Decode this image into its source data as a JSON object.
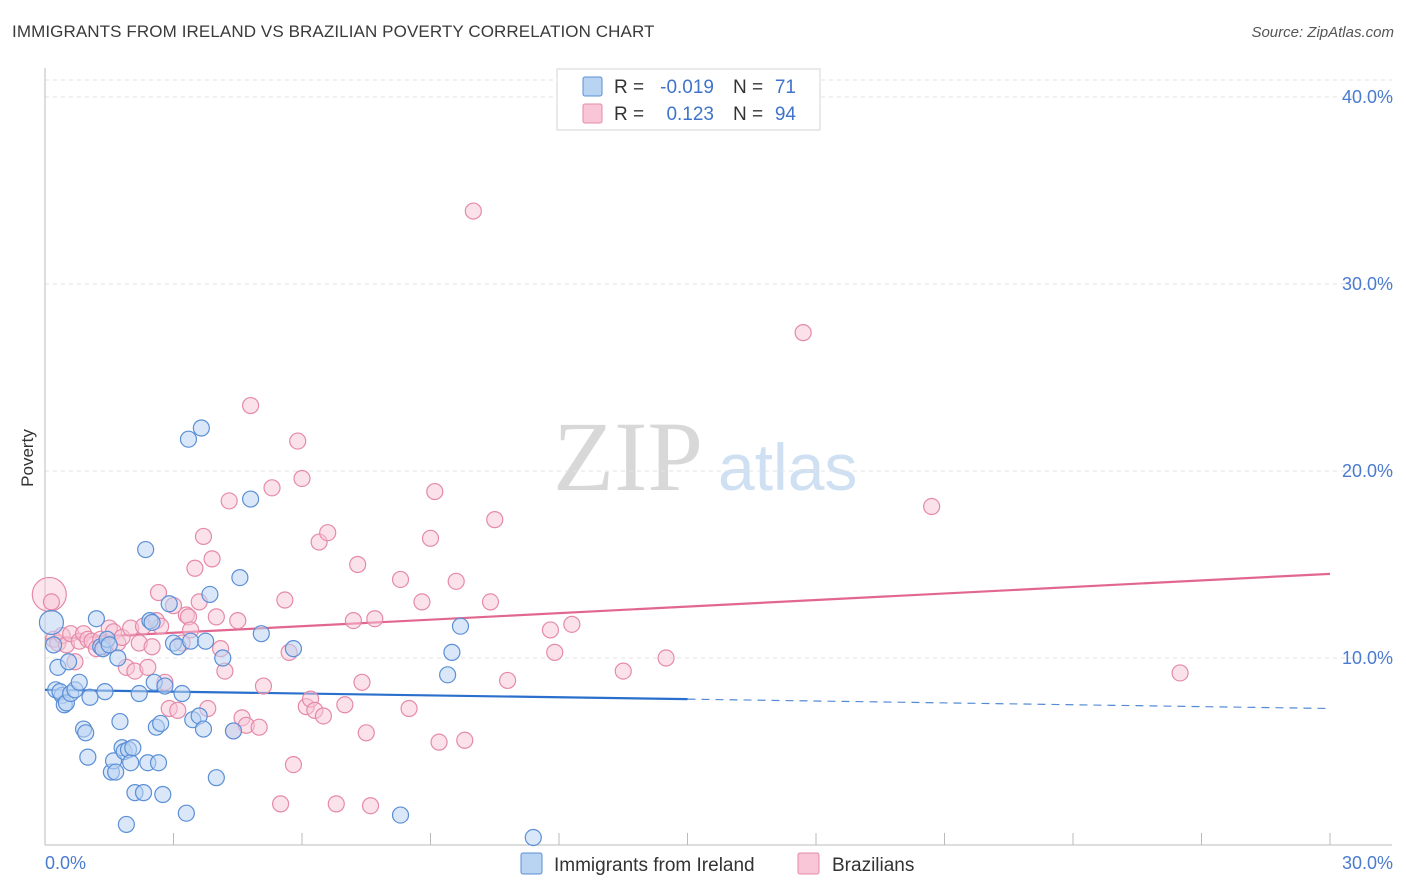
{
  "title": "IMMIGRANTS FROM IRELAND VS BRAZILIAN POVERTY CORRELATION CHART",
  "source": "Source: ZipAtlas.com",
  "watermark": {
    "zip": "ZIP",
    "atlas": "atlas"
  },
  "legend_top": {
    "rows": [
      {
        "r_label": "R =",
        "r_value": "-0.019",
        "n_label": "N =",
        "n_value": "71"
      },
      {
        "r_label": "R =",
        "r_value": "0.123",
        "n_label": "N =",
        "n_value": "94"
      }
    ]
  },
  "colors": {
    "blue_fill": "#b9d3f3",
    "blue_stroke": "#5b8fd6",
    "blue_line": "#2a6fcb",
    "pink_fill": "#f8c6d6",
    "pink_stroke": "#e58aa8",
    "pink_line": "#e2678f",
    "tick_text": "#4a7bd0",
    "grid": "#e3e3e3"
  },
  "chart_data": {
    "type": "scatter",
    "title": "IMMIGRANTS FROM IRELAND VS BRAZILIAN POVERTY CORRELATION CHART",
    "xlabel": "",
    "ylabel": "Poverty",
    "xlim": [
      0,
      30
    ],
    "ylim": [
      0,
      40
    ],
    "x_tick_labels": [
      {
        "value": 0,
        "label": "0.0%"
      },
      {
        "value": 30,
        "label": "30.0%"
      }
    ],
    "y_tick_labels": [
      {
        "value": 10,
        "label": "10.0%"
      },
      {
        "value": 20,
        "label": "20.0%"
      },
      {
        "value": 30,
        "label": "30.0%"
      },
      {
        "value": 40,
        "label": "40.0%"
      }
    ],
    "grid": true,
    "legend_position": "bottom-center",
    "series": [
      {
        "name": "Immigrants from Ireland",
        "color": "#5b8fd6",
        "r": -0.019,
        "n": 71,
        "trend": {
          "x0": 0,
          "y0": 8.3,
          "x1": 15,
          "y1": 7.8,
          "dashed_to_x": 30,
          "dashed_to_y": 7.3
        },
        "points": [
          [
            0.15,
            11.9
          ],
          [
            0.2,
            10.7
          ],
          [
            0.3,
            9.5
          ],
          [
            0.25,
            8.3
          ],
          [
            0.4,
            8.0
          ],
          [
            0.35,
            8.2
          ],
          [
            0.45,
            7.5
          ],
          [
            0.5,
            7.6
          ],
          [
            0.6,
            8.1
          ],
          [
            0.7,
            8.3
          ],
          [
            0.55,
            9.8
          ],
          [
            0.8,
            8.7
          ],
          [
            0.9,
            6.2
          ],
          [
            0.95,
            6.0
          ],
          [
            1.0,
            4.7
          ],
          [
            1.05,
            7.9
          ],
          [
            1.2,
            12.1
          ],
          [
            1.3,
            10.6
          ],
          [
            1.35,
            10.5
          ],
          [
            1.4,
            8.2
          ],
          [
            1.45,
            11.0
          ],
          [
            1.5,
            10.7
          ],
          [
            1.55,
            3.9
          ],
          [
            1.6,
            4.5
          ],
          [
            1.65,
            3.9
          ],
          [
            1.7,
            10.0
          ],
          [
            1.75,
            6.6
          ],
          [
            1.8,
            5.2
          ],
          [
            1.85,
            5.0
          ],
          [
            1.9,
            1.1
          ],
          [
            1.95,
            5.1
          ],
          [
            2.0,
            4.4
          ],
          [
            2.05,
            5.2
          ],
          [
            2.1,
            2.8
          ],
          [
            2.2,
            8.1
          ],
          [
            2.3,
            2.8
          ],
          [
            2.35,
            15.8
          ],
          [
            2.4,
            4.4
          ],
          [
            2.45,
            12.0
          ],
          [
            2.5,
            11.9
          ],
          [
            2.55,
            8.7
          ],
          [
            2.6,
            6.3
          ],
          [
            2.65,
            4.4
          ],
          [
            2.7,
            6.5
          ],
          [
            2.75,
            2.7
          ],
          [
            2.8,
            8.5
          ],
          [
            2.9,
            12.9
          ],
          [
            3.0,
            10.8
          ],
          [
            3.1,
            10.6
          ],
          [
            3.2,
            8.1
          ],
          [
            3.3,
            1.7
          ],
          [
            3.35,
            21.7
          ],
          [
            3.4,
            10.9
          ],
          [
            3.45,
            6.7
          ],
          [
            3.6,
            6.9
          ],
          [
            3.65,
            22.3
          ],
          [
            3.7,
            6.2
          ],
          [
            3.75,
            10.9
          ],
          [
            3.85,
            13.4
          ],
          [
            4.0,
            3.6
          ],
          [
            4.15,
            10.0
          ],
          [
            4.4,
            6.1
          ],
          [
            4.55,
            14.3
          ],
          [
            4.8,
            18.5
          ],
          [
            5.05,
            11.3
          ],
          [
            5.8,
            10.5
          ],
          [
            8.3,
            1.6
          ],
          [
            9.4,
            9.1
          ],
          [
            9.5,
            10.3
          ],
          [
            9.7,
            11.7
          ],
          [
            11.4,
            0.4
          ]
        ]
      },
      {
        "name": "Brazilians",
        "color": "#e58aa8",
        "r": 0.123,
        "n": 94,
        "trend": {
          "x0": 0,
          "y0": 11.0,
          "x1": 30,
          "y1": 14.5
        },
        "points": [
          [
            0.1,
            13.4
          ],
          [
            0.15,
            13.0
          ],
          [
            0.2,
            11.0
          ],
          [
            0.3,
            10.8
          ],
          [
            0.4,
            11.2
          ],
          [
            0.5,
            10.7
          ],
          [
            0.6,
            11.3
          ],
          [
            0.7,
            9.8
          ],
          [
            0.8,
            10.9
          ],
          [
            0.9,
            11.3
          ],
          [
            1.0,
            11.0
          ],
          [
            1.1,
            10.9
          ],
          [
            1.2,
            10.5
          ],
          [
            1.3,
            11.0
          ],
          [
            1.4,
            10.6
          ],
          [
            1.5,
            11.6
          ],
          [
            1.6,
            11.4
          ],
          [
            1.7,
            10.8
          ],
          [
            1.8,
            11.1
          ],
          [
            1.9,
            9.5
          ],
          [
            2.0,
            11.6
          ],
          [
            2.1,
            9.3
          ],
          [
            2.2,
            10.8
          ],
          [
            2.3,
            11.7
          ],
          [
            2.4,
            9.5
          ],
          [
            2.5,
            10.6
          ],
          [
            2.6,
            12.0
          ],
          [
            2.65,
            13.5
          ],
          [
            2.7,
            11.7
          ],
          [
            2.8,
            8.7
          ],
          [
            2.9,
            7.3
          ],
          [
            3.0,
            12.8
          ],
          [
            3.1,
            7.2
          ],
          [
            3.2,
            10.8
          ],
          [
            3.3,
            12.3
          ],
          [
            3.35,
            12.2
          ],
          [
            3.4,
            11.5
          ],
          [
            3.5,
            14.8
          ],
          [
            3.6,
            13.0
          ],
          [
            3.7,
            16.5
          ],
          [
            3.8,
            7.3
          ],
          [
            3.9,
            15.3
          ],
          [
            4.0,
            12.2
          ],
          [
            4.1,
            10.5
          ],
          [
            4.2,
            9.3
          ],
          [
            4.3,
            18.4
          ],
          [
            4.4,
            6.1
          ],
          [
            4.5,
            12.0
          ],
          [
            4.6,
            6.8
          ],
          [
            4.7,
            6.4
          ],
          [
            4.8,
            23.5
          ],
          [
            5.0,
            6.3
          ],
          [
            5.1,
            8.5
          ],
          [
            5.3,
            19.1
          ],
          [
            5.5,
            2.2
          ],
          [
            5.6,
            13.1
          ],
          [
            5.7,
            10.3
          ],
          [
            5.8,
            4.3
          ],
          [
            5.9,
            21.6
          ],
          [
            6.0,
            19.6
          ],
          [
            6.1,
            7.4
          ],
          [
            6.2,
            7.8
          ],
          [
            6.3,
            7.2
          ],
          [
            6.4,
            16.2
          ],
          [
            6.5,
            6.9
          ],
          [
            6.6,
            16.7
          ],
          [
            6.8,
            2.2
          ],
          [
            7.0,
            7.5
          ],
          [
            7.2,
            12.0
          ],
          [
            7.3,
            15.0
          ],
          [
            7.4,
            8.7
          ],
          [
            7.5,
            6.0
          ],
          [
            7.6,
            2.1
          ],
          [
            7.7,
            12.1
          ],
          [
            8.3,
            14.2
          ],
          [
            8.5,
            7.3
          ],
          [
            8.8,
            13.0
          ],
          [
            9.0,
            16.4
          ],
          [
            9.1,
            18.9
          ],
          [
            9.2,
            5.5
          ],
          [
            9.6,
            14.1
          ],
          [
            9.8,
            5.6
          ],
          [
            10.0,
            33.9
          ],
          [
            10.4,
            13.0
          ],
          [
            10.5,
            17.4
          ],
          [
            10.8,
            8.8
          ],
          [
            11.8,
            11.5
          ],
          [
            11.9,
            10.3
          ],
          [
            12.3,
            11.8
          ],
          [
            13.5,
            9.3
          ],
          [
            14.5,
            10.0
          ],
          [
            17.7,
            27.4
          ],
          [
            20.7,
            18.1
          ],
          [
            26.5,
            9.2
          ]
        ]
      }
    ]
  },
  "legend_bottom": {
    "items": [
      {
        "label": "Immigrants from Ireland"
      },
      {
        "label": "Brazilians"
      }
    ]
  }
}
